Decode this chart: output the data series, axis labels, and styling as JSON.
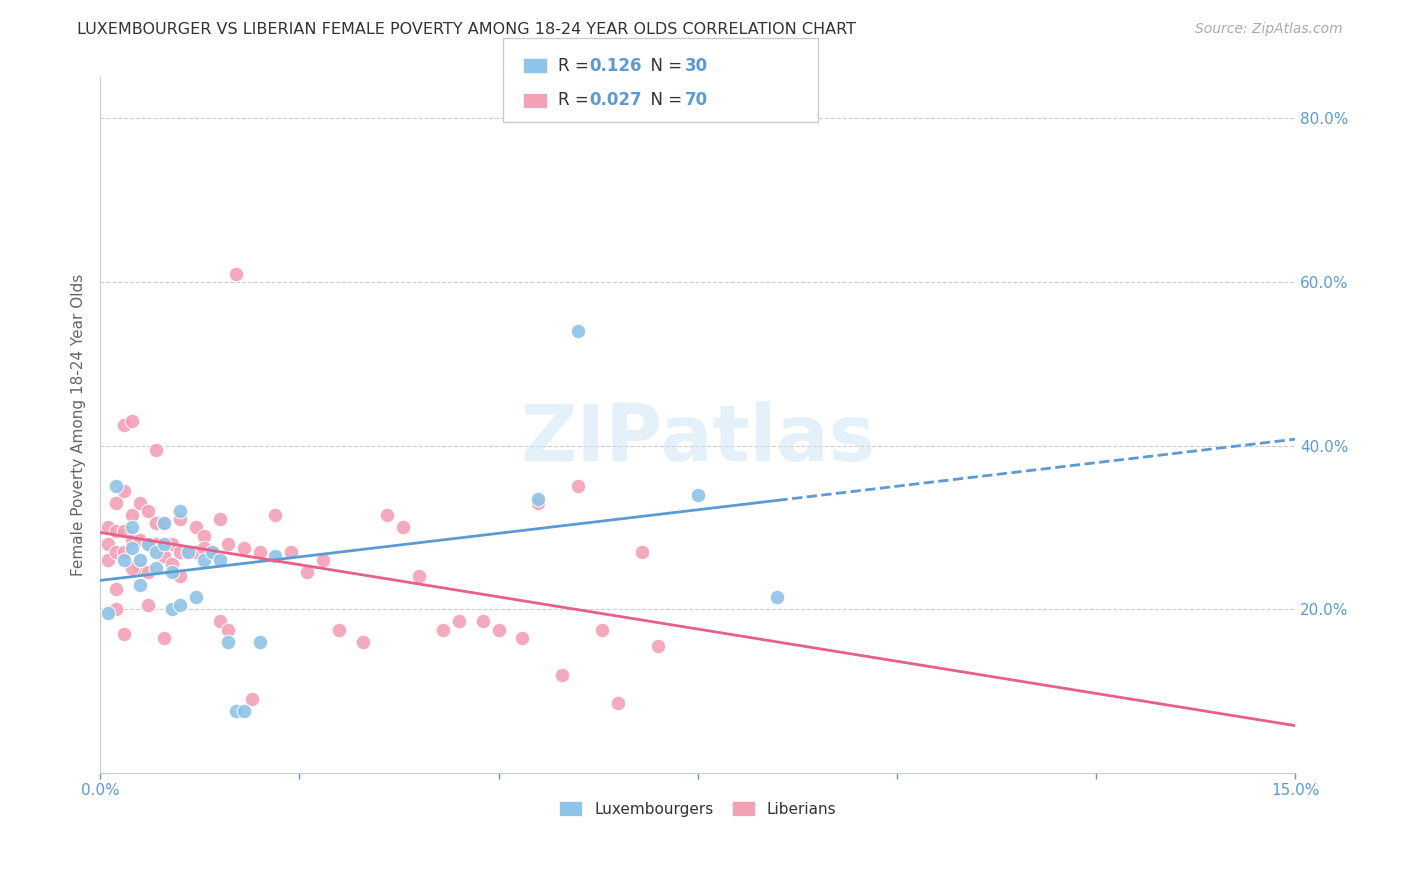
{
  "title": "LUXEMBOURGER VS LIBERIAN FEMALE POVERTY AMONG 18-24 YEAR OLDS CORRELATION CHART",
  "source": "Source: ZipAtlas.com",
  "ylabel": "Female Poverty Among 18-24 Year Olds",
  "xlim": [
    0.0,
    0.15
  ],
  "ylim": [
    0.0,
    0.85
  ],
  "right_yticks": [
    0.2,
    0.4,
    0.6,
    0.8
  ],
  "right_yticklabels": [
    "20.0%",
    "40.0%",
    "60.0%",
    "80.0%"
  ],
  "xticks": [
    0.0,
    0.025,
    0.05,
    0.075,
    0.1,
    0.125,
    0.15
  ],
  "xticklabels": [
    "0.0%",
    "",
    "",
    "",
    "",
    "",
    "15.0%"
  ],
  "blue_R": "0.126",
  "blue_N": "30",
  "pink_R": "0.027",
  "pink_N": "70",
  "blue_color": "#8ec4e8",
  "pink_color": "#f4a0b5",
  "blue_line_color": "#5b9bd5",
  "pink_line_color": "#e8608a",
  "watermark": "ZIPatlas",
  "lux_x": [
    0.001,
    0.002,
    0.003,
    0.004,
    0.004,
    0.005,
    0.005,
    0.006,
    0.007,
    0.007,
    0.008,
    0.008,
    0.009,
    0.009,
    0.01,
    0.01,
    0.011,
    0.012,
    0.013,
    0.014,
    0.015,
    0.016,
    0.017,
    0.018,
    0.02,
    0.022,
    0.055,
    0.06,
    0.075,
    0.085
  ],
  "lux_y": [
    0.195,
    0.35,
    0.26,
    0.275,
    0.3,
    0.23,
    0.26,
    0.28,
    0.25,
    0.27,
    0.28,
    0.305,
    0.2,
    0.245,
    0.205,
    0.32,
    0.27,
    0.215,
    0.26,
    0.27,
    0.26,
    0.16,
    0.075,
    0.075,
    0.16,
    0.265,
    0.335,
    0.54,
    0.34,
    0.215
  ],
  "lib_x": [
    0.001,
    0.001,
    0.001,
    0.002,
    0.002,
    0.002,
    0.002,
    0.003,
    0.003,
    0.003,
    0.003,
    0.004,
    0.004,
    0.004,
    0.005,
    0.005,
    0.005,
    0.006,
    0.006,
    0.006,
    0.007,
    0.007,
    0.007,
    0.008,
    0.008,
    0.009,
    0.009,
    0.01,
    0.01,
    0.011,
    0.012,
    0.012,
    0.013,
    0.014,
    0.015,
    0.015,
    0.016,
    0.017,
    0.018,
    0.02,
    0.022,
    0.024,
    0.026,
    0.028,
    0.03,
    0.033,
    0.036,
    0.038,
    0.04,
    0.043,
    0.045,
    0.048,
    0.05,
    0.053,
    0.055,
    0.058,
    0.06,
    0.063,
    0.065,
    0.068,
    0.002,
    0.003,
    0.004,
    0.006,
    0.008,
    0.01,
    0.013,
    0.016,
    0.019,
    0.07
  ],
  "lib_y": [
    0.26,
    0.28,
    0.3,
    0.225,
    0.27,
    0.295,
    0.33,
    0.27,
    0.295,
    0.345,
    0.425,
    0.285,
    0.315,
    0.43,
    0.25,
    0.285,
    0.33,
    0.245,
    0.28,
    0.32,
    0.28,
    0.305,
    0.395,
    0.265,
    0.305,
    0.255,
    0.28,
    0.27,
    0.31,
    0.27,
    0.27,
    0.3,
    0.29,
    0.27,
    0.185,
    0.31,
    0.28,
    0.61,
    0.275,
    0.27,
    0.315,
    0.27,
    0.245,
    0.26,
    0.175,
    0.16,
    0.315,
    0.3,
    0.24,
    0.175,
    0.185,
    0.185,
    0.175,
    0.165,
    0.33,
    0.12,
    0.35,
    0.175,
    0.085,
    0.27,
    0.2,
    0.17,
    0.25,
    0.205,
    0.165,
    0.24,
    0.275,
    0.175,
    0.09,
    0.155
  ]
}
